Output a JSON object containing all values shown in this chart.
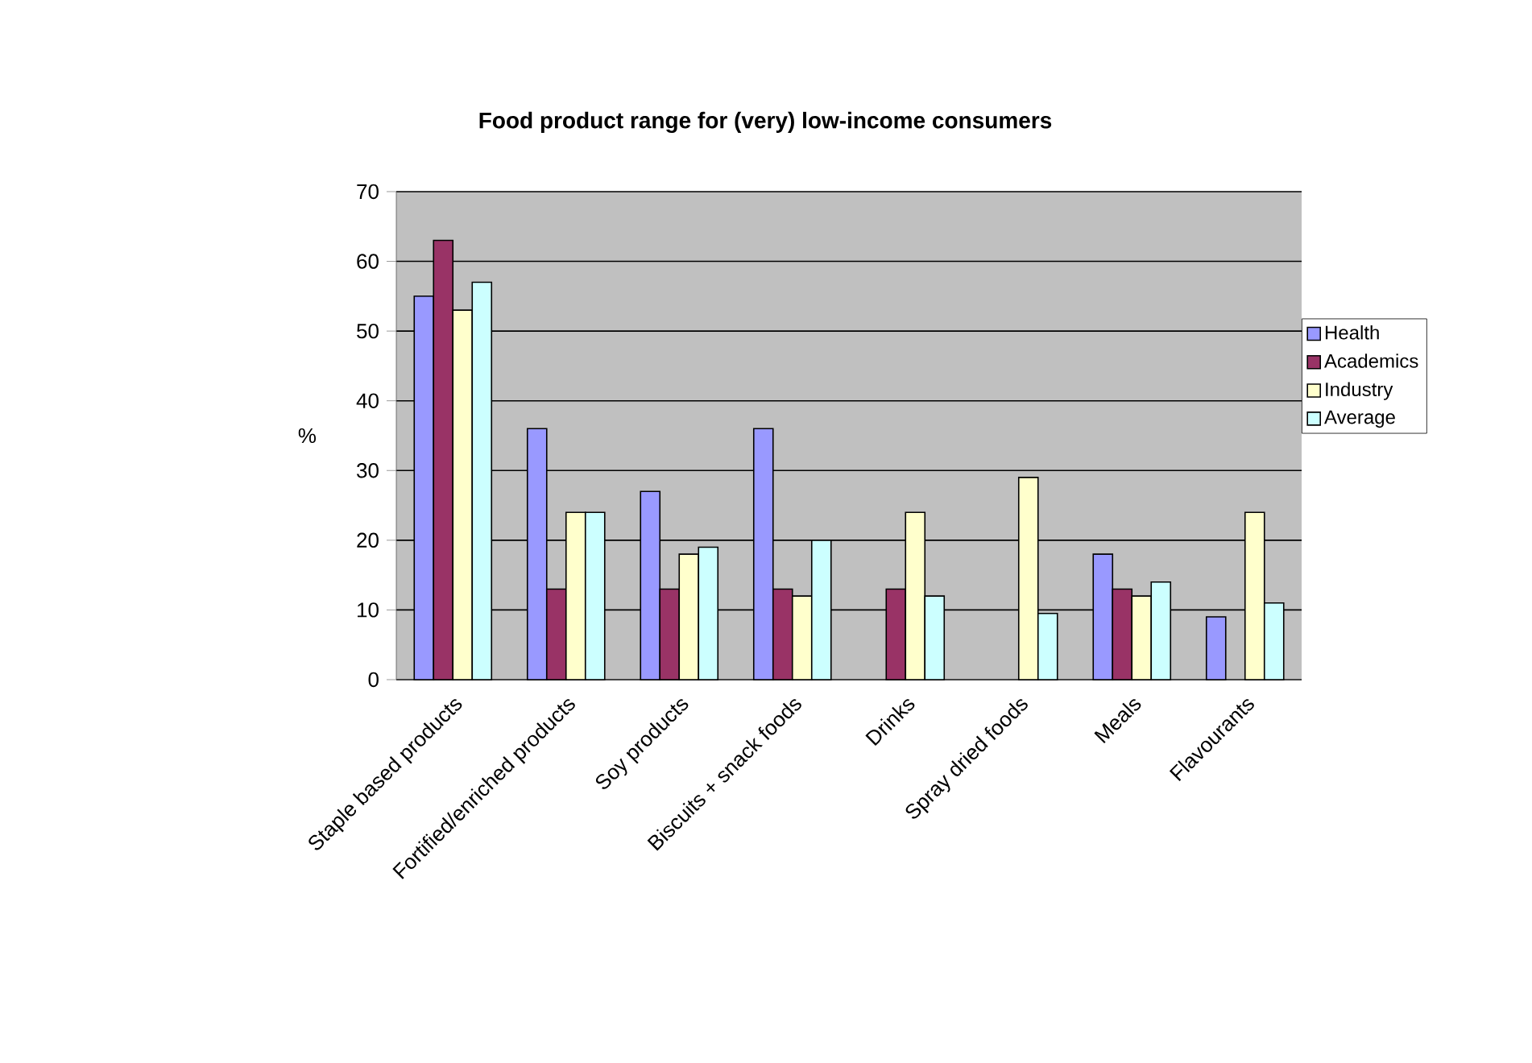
{
  "chart_data": {
    "type": "bar",
    "title": "Food product range  for (very) low-income consumers",
    "ylabel": "%",
    "categories": [
      "Staple based products",
      "Fortified/enriched products",
      "Soy products",
      "Biscuits + snack foods",
      "Drinks",
      "Spray dried foods",
      "Meals",
      "Flavourants"
    ],
    "series": [
      {
        "name": "Health",
        "color": "#9999ff",
        "values": [
          55,
          36,
          27,
          36,
          null,
          null,
          18,
          9
        ]
      },
      {
        "name": "Academics",
        "color": "#993366",
        "values": [
          63,
          13,
          13,
          13,
          13,
          null,
          13,
          null
        ]
      },
      {
        "name": "Industry",
        "color": "#ffffcc",
        "values": [
          53,
          24,
          18,
          12,
          24,
          29,
          12,
          24
        ]
      },
      {
        "name": "Average",
        "color": "#ccffff",
        "values": [
          57,
          24,
          19,
          20,
          12,
          9.5,
          14,
          11
        ]
      }
    ],
    "ylim": [
      0,
      70
    ],
    "yticks": [
      0,
      10,
      20,
      30,
      40,
      50,
      60,
      70
    ],
    "grid": "y",
    "legend": "right"
  }
}
